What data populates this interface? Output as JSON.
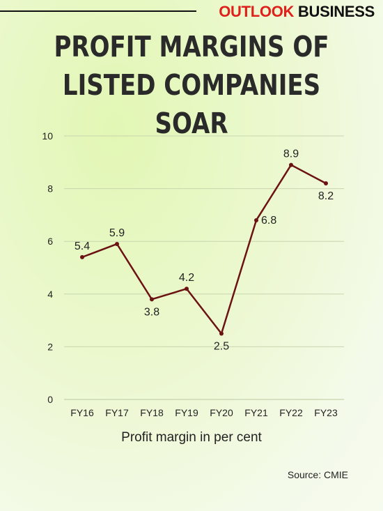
{
  "brand": {
    "part1": "OUTLOOK",
    "part2": "BUSINESS"
  },
  "title_line1": "PROFIT MARGINS OF",
  "title_line2": "LISTED COMPANIES SOAR",
  "source": "Source: CMIE",
  "colors": {
    "brand_red": "#e0201b",
    "line": "#6b1212",
    "grid": "#c8d6b0"
  },
  "chart_data": {
    "type": "line",
    "title": "PROFIT MARGINS OF LISTED COMPANIES SOAR",
    "xlabel": "Profit margin in per cent",
    "ylabel": "",
    "categories": [
      "FY16",
      "FY17",
      "FY18",
      "FY19",
      "FY20",
      "FY21",
      "FY22",
      "FY23"
    ],
    "series": [
      {
        "values": [
          5.4,
          5.9,
          3.8,
          4.2,
          2.5,
          6.8,
          8.9,
          8.2
        ]
      }
    ],
    "ylim": [
      0,
      10
    ],
    "yticks": [
      0,
      2,
      4,
      6,
      8,
      10
    ],
    "grid": true,
    "data_labels": [
      "5.4",
      "5.9",
      "3.8",
      "4.2",
      "2.5",
      "6.8",
      "8.9",
      "8.2"
    ]
  }
}
